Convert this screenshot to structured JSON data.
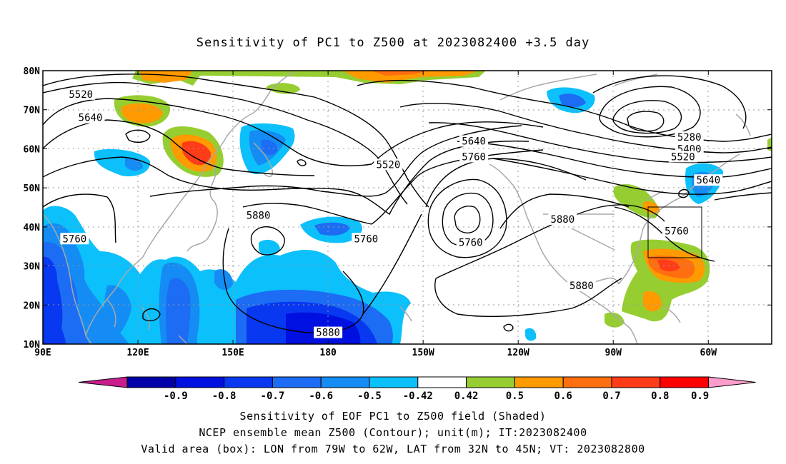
{
  "title": "Sensitivity of PC1 to Z500 at 2023082400 +3.5 day",
  "map": {
    "lat_labels": [
      "80N",
      "70N",
      "60N",
      "50N",
      "40N",
      "30N",
      "20N",
      "10N"
    ],
    "lat_values": [
      80,
      70,
      60,
      50,
      40,
      30,
      20,
      10
    ],
    "lon_labels": [
      "90E",
      "120E",
      "150E",
      "180",
      "150W",
      "120W",
      "90W",
      "60W"
    ],
    "lon_values": [
      90,
      120,
      150,
      180,
      210,
      240,
      270,
      300
    ],
    "lon_range": [
      90,
      320
    ],
    "lat_range": [
      10,
      80
    ],
    "contour_labels": [
      {
        "text": "5520",
        "lon": 102,
        "lat": 74
      },
      {
        "text": "5640",
        "lon": 105,
        "lat": 68
      },
      {
        "text": "5640",
        "lon": 226,
        "lat": 62
      },
      {
        "text": "5760",
        "lon": 226,
        "lat": 58
      },
      {
        "text": "5520",
        "lon": 199,
        "lat": 56
      },
      {
        "text": "5280",
        "lon": 294,
        "lat": 63
      },
      {
        "text": "5400",
        "lon": 294,
        "lat": 60
      },
      {
        "text": "5520",
        "lon": 292,
        "lat": 58
      },
      {
        "text": "5640",
        "lon": 300,
        "lat": 52
      },
      {
        "text": "5880",
        "lon": 158,
        "lat": 43
      },
      {
        "text": "5760",
        "lon": 100,
        "lat": 37
      },
      {
        "text": "5760",
        "lon": 192,
        "lat": 37
      },
      {
        "text": "5760",
        "lon": 225,
        "lat": 36
      },
      {
        "text": "5880",
        "lon": 254,
        "lat": 42
      },
      {
        "text": "5760",
        "lon": 290,
        "lat": 39
      },
      {
        "text": "5880",
        "lon": 260,
        "lat": 25
      },
      {
        "text": "5880",
        "lon": 180,
        "lat": 13
      }
    ],
    "valid_box": {
      "lon_west": 281,
      "lon_east": 298,
      "lat_south": 32,
      "lat_north": 45
    }
  },
  "colorbar": {
    "labels": [
      "-0.9",
      "-0.8",
      "-0.7",
      "-0.6",
      "-0.5",
      "-0.42",
      "0.42",
      "0.5",
      "0.6",
      "0.7",
      "0.8",
      "0.9"
    ],
    "colors": [
      "#0000a8",
      "#0010e0",
      "#0838f0",
      "#1c6cf4",
      "#148cf4",
      "#0cc0fc",
      "#ffffff",
      "#96ce32",
      "#ff9a00",
      "#ff6e10",
      "#ff3c18",
      "#ff0000"
    ],
    "low_end_color": "#c81e8c",
    "high_end_color": "#ff9ccc"
  },
  "captions": {
    "line1": "Sensitivity of EOF PC1 to Z500 field (Shaded)",
    "line2": "NCEP ensemble mean Z500 (Contour); unit(m); IT:2023082400",
    "line3": "Valid area (box): LON from 79W to 62W, LAT from 32N to 45N; VT: 2023082800"
  }
}
